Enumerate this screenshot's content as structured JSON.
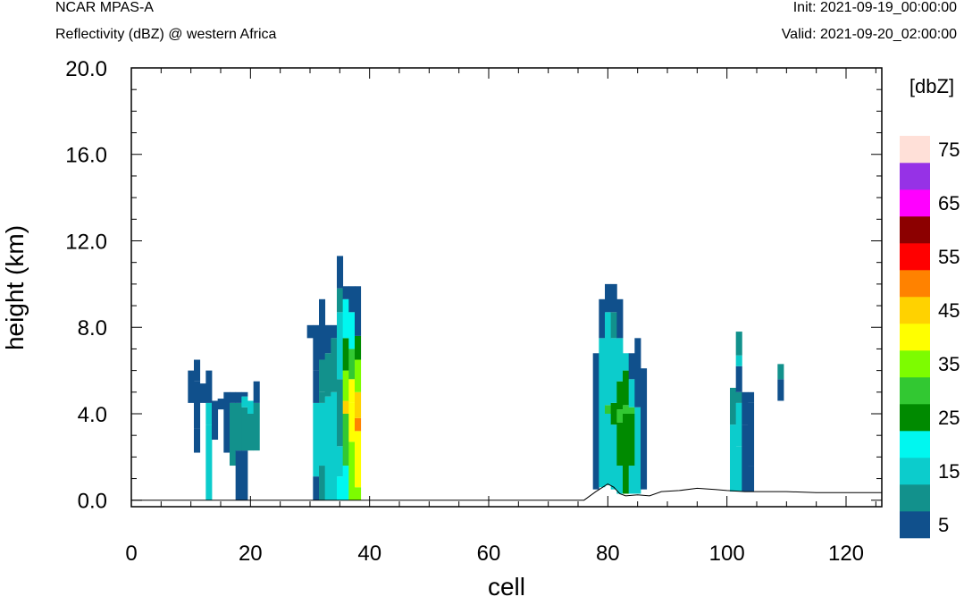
{
  "header": {
    "model": "NCAR MPAS-A",
    "subtitle": "Reflectivity (dBZ) @ western Africa",
    "init": "Init: 2021-09-19_00:00:00",
    "valid": "Valid: 2021-09-20_02:00:00"
  },
  "chart_data": {
    "type": "heatmap",
    "title": "Reflectivity (dBZ) @ western Africa",
    "xlabel": "cell",
    "ylabel": "height (km)",
    "xlim": [
      0,
      126
    ],
    "ylim": [
      -0.3,
      20.0
    ],
    "x_ticks": [
      "0",
      "20",
      "40",
      "60",
      "80",
      "100",
      "120"
    ],
    "y_ticks": [
      "0.0",
      "4.0",
      "8.0",
      "12.0",
      "16.0",
      "20.0"
    ],
    "colorbar": {
      "label": "[dbZ]",
      "tick_labels": [
        "5",
        "15",
        "25",
        "35",
        "45",
        "55",
        "65",
        "75"
      ],
      "levels": [
        5,
        10,
        15,
        20,
        25,
        30,
        35,
        40,
        45,
        50,
        55,
        60,
        65,
        70,
        75
      ],
      "colors": [
        "#10508c",
        "#12918c",
        "#0ccccc",
        "#00f7f0",
        "#008a00",
        "#32c832",
        "#7dfc00",
        "#ffff00",
        "#ffd200",
        "#ff8200",
        "#ff0000",
        "#8c0000",
        "#ff00ff",
        "#9632e6",
        "#ffe0d8"
      ]
    },
    "cell_height_km": 0.6,
    "columns": [
      {
        "x": 10,
        "bins": [
          [
            4.5,
            6.0,
            5
          ]
        ]
      },
      {
        "x": 11,
        "bins": [
          [
            2.2,
            3.3,
            5
          ],
          [
            3.3,
            5.5,
            5
          ],
          [
            5.5,
            6.5,
            5
          ]
        ]
      },
      {
        "x": 12,
        "bins": [
          [
            4.5,
            5.4,
            5
          ]
        ]
      },
      {
        "x": 13,
        "bins": [
          [
            0.0,
            3.5,
            15
          ],
          [
            3.5,
            4.5,
            15
          ],
          [
            4.5,
            6.0,
            5
          ]
        ]
      },
      {
        "x": 14,
        "bins": [
          [
            2.8,
            4.5,
            5
          ],
          [
            4.2,
            4.6,
            5
          ]
        ]
      },
      {
        "x": 15,
        "bins": [
          [
            4.2,
            4.7,
            5
          ]
        ]
      },
      {
        "x": 16,
        "bins": [
          [
            2.2,
            4.0,
            5
          ],
          [
            4.0,
            5.0,
            5
          ]
        ]
      },
      {
        "x": 17,
        "bins": [
          [
            1.6,
            4.5,
            10
          ],
          [
            4.5,
            5.0,
            5
          ]
        ]
      },
      {
        "x": 18,
        "bins": [
          [
            0.0,
            2.3,
            5
          ],
          [
            2.3,
            4.5,
            10
          ],
          [
            4.5,
            5.0,
            5
          ]
        ]
      },
      {
        "x": 19,
        "bins": [
          [
            0.0,
            2.3,
            5
          ],
          [
            2.3,
            4.3,
            10
          ],
          [
            4.3,
            4.8,
            15
          ],
          [
            4.8,
            5.0,
            5
          ]
        ]
      },
      {
        "x": 20,
        "bins": [
          [
            2.3,
            4.0,
            10
          ],
          [
            4.0,
            4.6,
            15
          ]
        ]
      },
      {
        "x": 21,
        "bins": [
          [
            2.3,
            4.5,
            10
          ],
          [
            4.5,
            5.5,
            5
          ]
        ]
      },
      {
        "x": 30,
        "bins": [
          [
            7.5,
            8.1,
            5
          ]
        ]
      },
      {
        "x": 31,
        "bins": [
          [
            0.0,
            1.1,
            5
          ],
          [
            1.1,
            4.5,
            15
          ],
          [
            4.5,
            6.0,
            5
          ],
          [
            6.0,
            8.1,
            5
          ]
        ]
      },
      {
        "x": 32,
        "bins": [
          [
            0.0,
            1.6,
            10
          ],
          [
            1.6,
            4.5,
            15
          ],
          [
            4.5,
            5.0,
            10
          ],
          [
            5.0,
            6.5,
            10
          ],
          [
            6.5,
            9.3,
            5
          ]
        ]
      },
      {
        "x": 33,
        "bins": [
          [
            0.0,
            4.8,
            15
          ],
          [
            4.8,
            6.8,
            10
          ],
          [
            6.8,
            8.1,
            5
          ]
        ]
      },
      {
        "x": 34,
        "bins": [
          [
            0.0,
            5.0,
            15
          ],
          [
            5.0,
            7.5,
            10
          ],
          [
            7.5,
            8.1,
            5
          ]
        ]
      },
      {
        "x": 35,
        "bins": [
          [
            0.0,
            1.1,
            20
          ],
          [
            1.1,
            2.5,
            15
          ],
          [
            2.5,
            5.6,
            10
          ],
          [
            5.6,
            8.7,
            15
          ],
          [
            8.7,
            9.8,
            10
          ],
          [
            9.8,
            11.3,
            5
          ]
        ]
      },
      {
        "x": 36,
        "bins": [
          [
            0.0,
            1.6,
            20
          ],
          [
            1.6,
            4.0,
            30
          ],
          [
            4.0,
            4.6,
            45
          ],
          [
            4.6,
            6.0,
            35
          ],
          [
            6.0,
            7.5,
            25
          ],
          [
            7.5,
            9.3,
            20
          ],
          [
            9.3,
            9.9,
            5
          ]
        ]
      },
      {
        "x": 37,
        "bins": [
          [
            0.0,
            2.7,
            35
          ],
          [
            2.7,
            4.5,
            40
          ],
          [
            4.5,
            5.6,
            40
          ],
          [
            5.6,
            7.0,
            30
          ],
          [
            7.0,
            8.7,
            20
          ],
          [
            8.7,
            9.9,
            5
          ]
        ]
      },
      {
        "x": 38,
        "bins": [
          [
            0.0,
            0.6,
            35
          ],
          [
            0.6,
            3.2,
            40
          ],
          [
            3.2,
            3.8,
            50
          ],
          [
            3.8,
            5.0,
            45
          ],
          [
            5.0,
            6.5,
            35
          ],
          [
            6.5,
            7.6,
            25
          ],
          [
            7.6,
            9.9,
            5
          ]
        ]
      },
      {
        "x": 78,
        "bins": [
          [
            0.5,
            6.8,
            5
          ]
        ]
      },
      {
        "x": 79,
        "bins": [
          [
            0.6,
            7.5,
            15
          ],
          [
            7.5,
            9.3,
            5
          ]
        ]
      },
      {
        "x": 80,
        "bins": [
          [
            0.7,
            4.0,
            15
          ],
          [
            4.0,
            4.4,
            30
          ],
          [
            4.4,
            8.7,
            15
          ],
          [
            8.7,
            10.0,
            5
          ]
        ]
      },
      {
        "x": 81,
        "bins": [
          [
            0.5,
            3.5,
            15
          ],
          [
            3.5,
            4.5,
            25
          ],
          [
            4.5,
            7.5,
            15
          ],
          [
            7.5,
            8.7,
            10
          ],
          [
            8.7,
            10.0,
            5
          ]
        ]
      },
      {
        "x": 82,
        "bins": [
          [
            0.3,
            1.6,
            15
          ],
          [
            1.6,
            3.6,
            25
          ],
          [
            3.6,
            4.2,
            30
          ],
          [
            4.2,
            5.5,
            25
          ],
          [
            5.5,
            7.5,
            15
          ],
          [
            7.5,
            9.3,
            5
          ]
        ]
      },
      {
        "x": 83,
        "bins": [
          [
            0.3,
            4.0,
            25
          ],
          [
            4.0,
            4.4,
            30
          ],
          [
            4.4,
            6.0,
            25
          ],
          [
            6.0,
            6.8,
            15
          ]
        ]
      },
      {
        "x": 84,
        "bins": [
          [
            0.3,
            1.6,
            15
          ],
          [
            1.6,
            4.0,
            25
          ],
          [
            4.0,
            4.3,
            30
          ],
          [
            4.3,
            5.6,
            15
          ],
          [
            5.6,
            6.8,
            5
          ]
        ]
      },
      {
        "x": 85,
        "bins": [
          [
            0.3,
            4.3,
            15
          ],
          [
            4.3,
            7.5,
            5
          ]
        ]
      },
      {
        "x": 86,
        "bins": [
          [
            0.5,
            6.1,
            5
          ]
        ]
      },
      {
        "x": 101,
        "bins": [
          [
            0.4,
            3.5,
            15
          ],
          [
            3.5,
            5.2,
            10
          ]
        ]
      },
      {
        "x": 102,
        "bins": [
          [
            0.4,
            2.5,
            15
          ],
          [
            2.5,
            4.5,
            15
          ],
          [
            4.5,
            5.0,
            10
          ],
          [
            5.0,
            6.2,
            5
          ],
          [
            6.2,
            6.7,
            15
          ],
          [
            6.7,
            7.8,
            10
          ]
        ]
      },
      {
        "x": 103,
        "bins": [
          [
            0.4,
            3.5,
            5
          ],
          [
            3.5,
            5.0,
            5
          ]
        ]
      },
      {
        "x": 104,
        "bins": [
          [
            0.4,
            1.6,
            5
          ],
          [
            1.6,
            4.5,
            5
          ],
          [
            4.5,
            5.0,
            5
          ]
        ]
      },
      {
        "x": 109,
        "bins": [
          [
            4.6,
            5.6,
            5
          ],
          [
            5.6,
            6.3,
            10
          ]
        ]
      }
    ],
    "terrain": [
      [
        0,
        0.0
      ],
      [
        76,
        0.0
      ],
      [
        78,
        0.4
      ],
      [
        80,
        0.75
      ],
      [
        81,
        0.6
      ],
      [
        82,
        0.3
      ],
      [
        83,
        0.2
      ],
      [
        85,
        0.25
      ],
      [
        87,
        0.2
      ],
      [
        89,
        0.4
      ],
      [
        92,
        0.45
      ],
      [
        95,
        0.55
      ],
      [
        98,
        0.5
      ],
      [
        100,
        0.45
      ],
      [
        103,
        0.4
      ],
      [
        110,
        0.4
      ],
      [
        115,
        0.35
      ],
      [
        120,
        0.35
      ],
      [
        126,
        0.35
      ]
    ]
  }
}
